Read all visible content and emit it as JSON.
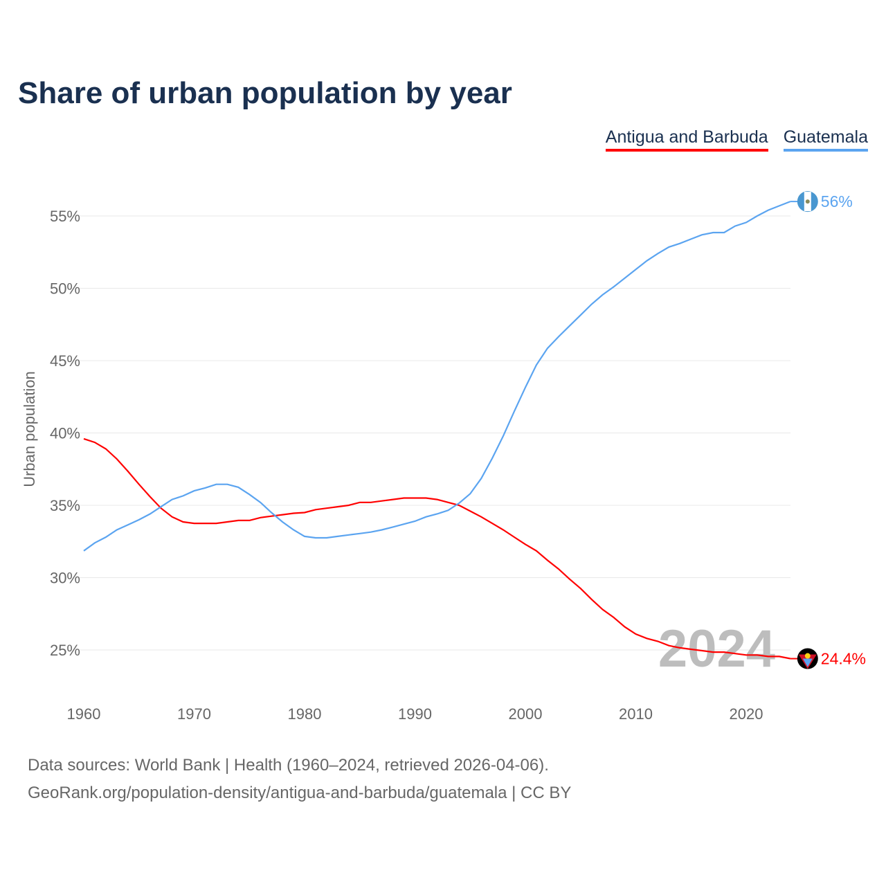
{
  "title": "Share of urban population by year",
  "legend": [
    {
      "label": "Antigua and Barbuda",
      "color": "#ff0000"
    },
    {
      "label": "Guatemala",
      "color": "#5ba4f0"
    }
  ],
  "footer": {
    "line1": "Data sources: World Bank | Health (1960–2024, retrieved 2026-04-06).",
    "line2": "GeoRank.org/population-density/antigua-and-barbuda/guatemala | CC BY"
  },
  "chart_data": {
    "type": "line",
    "title": "Share of urban population by year",
    "xlabel": "",
    "ylabel": "Urban population",
    "xlim": [
      1960,
      2024
    ],
    "ylim": [
      23,
      57
    ],
    "xticks": [
      1960,
      1970,
      1980,
      1990,
      2000,
      2010,
      2020
    ],
    "yticks": [
      25,
      30,
      35,
      40,
      45,
      50,
      55
    ],
    "ytick_labels": [
      "25%",
      "30%",
      "35%",
      "40%",
      "45%",
      "50%",
      "55%"
    ],
    "watermark_year": "2024",
    "x": [
      1960,
      1961,
      1962,
      1963,
      1964,
      1965,
      1966,
      1967,
      1968,
      1969,
      1970,
      1971,
      1972,
      1973,
      1974,
      1975,
      1976,
      1977,
      1978,
      1979,
      1980,
      1981,
      1982,
      1983,
      1984,
      1985,
      1986,
      1987,
      1988,
      1989,
      1990,
      1991,
      1992,
      1993,
      1994,
      1995,
      1996,
      1997,
      1998,
      1999,
      2000,
      2001,
      2002,
      2003,
      2004,
      2005,
      2006,
      2007,
      2008,
      2009,
      2010,
      2011,
      2012,
      2013,
      2014,
      2015,
      2016,
      2017,
      2018,
      2019,
      2020,
      2021,
      2022,
      2023,
      2024
    ],
    "series": [
      {
        "name": "Antigua and Barbuda",
        "color": "#ff0000",
        "end_label": "24.4%",
        "values": [
          39.6,
          39.35,
          38.9,
          38.2,
          37.35,
          36.45,
          35.6,
          34.8,
          34.2,
          33.85,
          33.75,
          33.75,
          33.75,
          33.85,
          33.95,
          33.95,
          34.15,
          34.25,
          34.35,
          34.45,
          34.5,
          34.7,
          34.8,
          34.9,
          35.0,
          35.2,
          35.2,
          35.3,
          35.4,
          35.5,
          35.5,
          35.5,
          35.4,
          35.2,
          35.0,
          34.6,
          34.2,
          33.75,
          33.3,
          32.8,
          32.3,
          31.85,
          31.2,
          30.6,
          29.9,
          29.25,
          28.5,
          27.8,
          27.25,
          26.6,
          26.1,
          25.8,
          25.6,
          25.3,
          25.15,
          25.05,
          24.95,
          24.85,
          24.85,
          24.75,
          24.65,
          24.65,
          24.55,
          24.55,
          24.4
        ]
      },
      {
        "name": "Guatemala",
        "color": "#5ba4f0",
        "end_label": "56%",
        "values": [
          31.85,
          32.4,
          32.8,
          33.3,
          33.65,
          34.0,
          34.4,
          34.9,
          35.4,
          35.65,
          36.0,
          36.2,
          36.45,
          36.45,
          36.25,
          35.75,
          35.2,
          34.5,
          33.85,
          33.3,
          32.85,
          32.75,
          32.75,
          32.85,
          32.95,
          33.05,
          33.15,
          33.3,
          33.5,
          33.7,
          33.9,
          34.2,
          34.4,
          34.65,
          35.15,
          35.8,
          36.85,
          38.25,
          39.8,
          41.5,
          43.15,
          44.7,
          45.85,
          46.65,
          47.4,
          48.15,
          48.9,
          49.55,
          50.1,
          50.7,
          51.3,
          51.9,
          52.4,
          52.85,
          53.1,
          53.4,
          53.7,
          53.85,
          53.85,
          54.3,
          54.55,
          55.0,
          55.4,
          55.7,
          56.0
        ]
      }
    ]
  }
}
